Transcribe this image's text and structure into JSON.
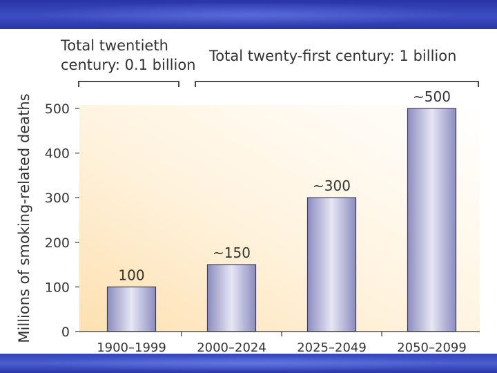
{
  "chart_data": {
    "type": "bar",
    "title": "",
    "categories": [
      "1900–1999",
      "2000–2024",
      "2025–2049",
      "2050–2099"
    ],
    "values": [
      100,
      150,
      300,
      500
    ],
    "data_labels": [
      "100",
      "~150",
      "~300",
      "~500"
    ],
    "ylabel": "Millions of smoking-related deaths",
    "xlabel": "",
    "ylim": [
      0,
      500
    ],
    "y_ticks": [
      0,
      100,
      200,
      300,
      400,
      500
    ],
    "grid": false,
    "group_annotations": [
      {
        "lines": [
          "Total twentieth",
          "century: 0.1 billion"
        ],
        "categories": [
          0
        ]
      },
      {
        "lines": [
          "Total twenty-first century: 1 billion"
        ],
        "categories": [
          1,
          2,
          3
        ]
      }
    ],
    "colors": {
      "bar_edge": "#3a3a5a",
      "bar_center": "#e6e6f4",
      "bar_side": "#8c8cc0",
      "background_warm": "#fde3b5"
    }
  }
}
